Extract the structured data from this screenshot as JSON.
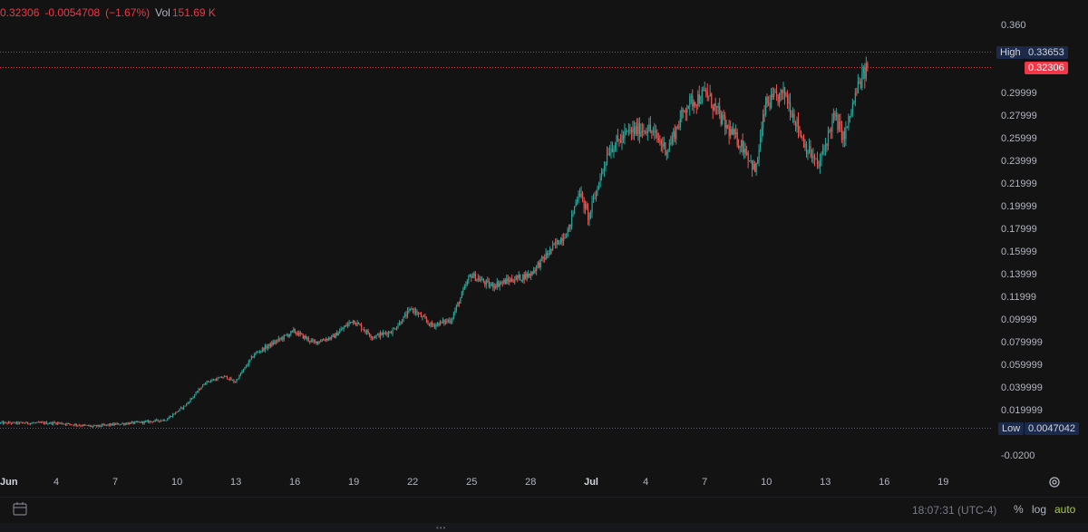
{
  "legend": {
    "close": "0.32306",
    "change": "-0.0054708",
    "change_pct": "(−1.67%)",
    "vol_label": "Vol",
    "vol_value": "151.69 K"
  },
  "price_axis": {
    "ticks": [
      "0.360",
      "0.29999",
      "0.27999",
      "0.25999",
      "0.23999",
      "0.21999",
      "0.19999",
      "0.17999",
      "0.15999",
      "0.13999",
      "0.11999",
      "0.09999",
      "0.079999",
      "0.059999",
      "0.039999",
      "0.019999",
      "-0.0200"
    ],
    "tick_values": [
      0.36,
      0.3,
      0.28,
      0.26,
      0.24,
      0.22,
      0.2,
      0.18,
      0.16,
      0.14,
      0.12,
      0.1,
      0.08,
      0.06,
      0.04,
      0.02,
      -0.02
    ]
  },
  "time_axis": {
    "ticks": [
      {
        "label": "Jun",
        "day_index": 0,
        "bold": true
      },
      {
        "label": "4",
        "day_index": 3,
        "bold": false
      },
      {
        "label": "7",
        "day_index": 6,
        "bold": false
      },
      {
        "label": "10",
        "day_index": 9,
        "bold": false
      },
      {
        "label": "13",
        "day_index": 12,
        "bold": false
      },
      {
        "label": "16",
        "day_index": 15,
        "bold": false
      },
      {
        "label": "19",
        "day_index": 18,
        "bold": false
      },
      {
        "label": "22",
        "day_index": 21,
        "bold": false
      },
      {
        "label": "25",
        "day_index": 24,
        "bold": false
      },
      {
        "label": "28",
        "day_index": 27,
        "bold": false
      },
      {
        "label": "Jul",
        "day_index": 30,
        "bold": true
      },
      {
        "label": "4",
        "day_index": 33,
        "bold": false
      },
      {
        "label": "7",
        "day_index": 36,
        "bold": false
      },
      {
        "label": "10",
        "day_index": 39,
        "bold": false
      },
      {
        "label": "13",
        "day_index": 42,
        "bold": false
      },
      {
        "label": "16",
        "day_index": 45,
        "bold": false
      },
      {
        "label": "19",
        "day_index": 48,
        "bold": false
      }
    ]
  },
  "markers": {
    "high": {
      "label": "High",
      "value": "0.33653",
      "price": 0.33653
    },
    "current": {
      "value": "0.32306",
      "price": 0.32306
    },
    "low": {
      "label": "Low",
      "value": "0.0047042",
      "price": 0.0047042
    }
  },
  "bottom": {
    "time": "18:07:31 (UTC-4)",
    "percent_label": "%",
    "log_label": "log",
    "auto_label": "auto"
  },
  "colors": {
    "up": "#26a69a",
    "down": "#ef5350",
    "background": "#131313",
    "current_price": "#f23645",
    "auto": "#a8c64e"
  },
  "chart_data": {
    "type": "candlestick",
    "title": "",
    "xlabel": "",
    "ylabel": "",
    "ylim": [
      -0.0264,
      0.3655
    ],
    "xlim_days": [
      0,
      50.3
    ],
    "grid": false,
    "trend": {
      "day_index": [
        0,
        3,
        4.8,
        6,
        7.5,
        8.5,
        9.5,
        10.5,
        11.5,
        12,
        13,
        14,
        15,
        16,
        17,
        18,
        19,
        20,
        21,
        22,
        23,
        24,
        25,
        26,
        27,
        28,
        29,
        29.5,
        30,
        31,
        32,
        33,
        34,
        35,
        36,
        37,
        38,
        38.5,
        39,
        40,
        41,
        41.7,
        42.5,
        43,
        43.7,
        44.2
      ],
      "price": [
        0.009,
        0.009,
        0.006,
        0.008,
        0.01,
        0.012,
        0.025,
        0.045,
        0.05,
        0.045,
        0.07,
        0.08,
        0.09,
        0.08,
        0.085,
        0.1,
        0.085,
        0.09,
        0.11,
        0.095,
        0.1,
        0.14,
        0.13,
        0.135,
        0.14,
        0.16,
        0.18,
        0.215,
        0.19,
        0.25,
        0.265,
        0.27,
        0.25,
        0.29,
        0.3,
        0.27,
        0.25,
        0.23,
        0.29,
        0.3,
        0.255,
        0.235,
        0.28,
        0.26,
        0.305,
        0.32306
      ]
    },
    "candle_count": 640,
    "volatility_pct": 0.018
  }
}
